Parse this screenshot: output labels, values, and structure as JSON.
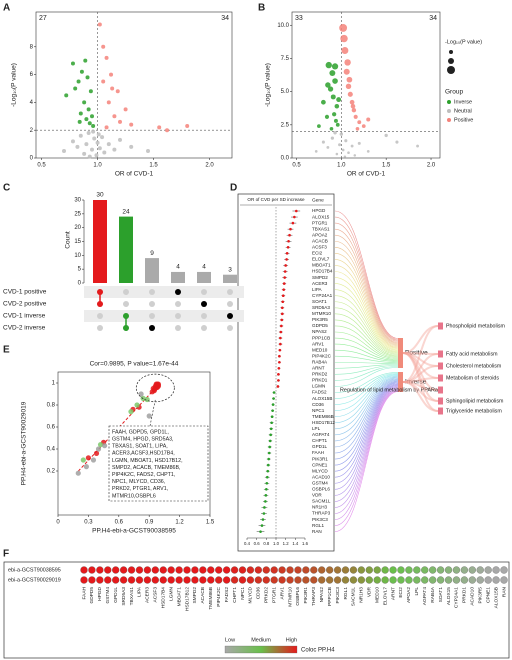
{
  "chart_data": [
    {
      "panel_label": "A",
      "type": "volcano",
      "x_label": "OR of CVD-1",
      "y_label": "-Log₁₀(P value)",
      "left_count": 27,
      "right_count": 34,
      "xlim": [
        0.45,
        2.2
      ],
      "xticks": [
        0.5,
        {
          "value": 1,
          "label": "1.0"
        },
        1.5,
        {
          "value": 2,
          "label": "2.0"
        }
      ],
      "ylim": [
        0,
        10.5
      ],
      "yticks": [
        0,
        2,
        4,
        6,
        8
      ],
      "vline": 1,
      "hline": 2,
      "series": [
        {
          "color": "#bdbdbd",
          "x": [
            0.7,
            0.78,
            0.82,
            0.85,
            0.88,
            0.9,
            0.92,
            0.95,
            0.97,
            0.99,
            1.0,
            1.02,
            1.04,
            1.06,
            1.1,
            1.15,
            1.2,
            1.3,
            1.45,
            0.93,
            0.96,
            1.01
          ],
          "values": [
            0.5,
            1.2,
            0.8,
            1.6,
            0.3,
            1.0,
            1.8,
            0.6,
            1.4,
            0.2,
            1.1,
            0.7,
            1.5,
            0.4,
            1.0,
            0.6,
            1.3,
            0.8,
            0.5,
            0.1,
            1.9,
            1.7
          ]
        },
        {
          "color": "#2ca02c",
          "x": [
            0.72,
            0.78,
            0.8,
            0.83,
            0.85,
            0.86,
            0.88,
            0.9,
            0.91,
            0.92,
            0.93,
            0.94,
            0.95,
            0.96,
            0.84,
            0.89
          ],
          "values": [
            4.5,
            6.8,
            5.0,
            5.5,
            3.2,
            6.2,
            4.0,
            2.8,
            5.8,
            3.5,
            2.5,
            4.8,
            3.0,
            2.3,
            2.6,
            7.0
          ]
        },
        {
          "color": "#f4827a",
          "x": [
            1.02,
            1.05,
            1.08,
            1.1,
            1.12,
            1.15,
            1.18,
            1.2,
            1.25,
            1.3,
            1.05,
            1.08,
            1.55,
            1.62,
            1.8,
            1.13
          ],
          "values": [
            9.6,
            5.5,
            7.2,
            4.0,
            6.0,
            3.0,
            4.8,
            2.6,
            3.5,
            2.4,
            8.0,
            2.2,
            2.2,
            2.0,
            2.3,
            5.0
          ]
        }
      ]
    },
    {
      "panel_label": "B",
      "type": "volcano",
      "x_label": "OR of CVD-1",
      "y_label": "-Log₁₀(P value)",
      "left_count": 33,
      "right_count": 34,
      "xlim": [
        0.45,
        2.1
      ],
      "xticks": [
        0.5,
        {
          "value": 1,
          "label": "1.0"
        },
        1.5,
        {
          "value": 2,
          "label": "2.0"
        }
      ],
      "ylim": [
        0,
        11
      ],
      "yticks": [
        {
          "value": 0,
          "label": "0.0"
        },
        2.5,
        {
          "value": 5,
          "label": "5.0"
        },
        7.5,
        {
          "value": 10,
          "label": "10.0"
        }
      ],
      "vline": 1,
      "hline": 2,
      "size_legend_title": "-Log₁₀(P value)",
      "legend_title": "Group",
      "series": [
        {
          "name": "Inverse",
          "color": "#2ca02c",
          "x": [
            0.75,
            0.8,
            0.84,
            0.86,
            0.88,
            0.9,
            0.91,
            0.92,
            0.93,
            0.94,
            0.95,
            0.96,
            0.97,
            0.89,
            0.85,
            0.93
          ],
          "values": [
            2.4,
            4.2,
            3.1,
            7.0,
            5.2,
            6.4,
            4.6,
            3.3,
            5.8,
            2.8,
            3.9,
            2.5,
            4.4,
            2.2,
            5.5,
            6.9
          ]
        },
        {
          "name": "Neutral",
          "color": "#bdbdbd",
          "x": [
            0.72,
            0.8,
            0.85,
            0.9,
            0.95,
            0.98,
            1.0,
            1.02,
            1.05,
            1.08,
            1.12,
            1.2,
            1.3,
            1.5,
            1.62,
            1.85,
            0.93,
            1.15,
            1.04
          ],
          "values": [
            0.5,
            1.2,
            0.8,
            1.5,
            0.3,
            1.0,
            1.8,
            0.6,
            1.3,
            0.4,
            0.9,
            1.1,
            0.5,
            1.7,
            1.2,
            0.9,
            1.9,
            0.2,
            0.1
          ]
        },
        {
          "name": "Positive",
          "color": "#f4827a",
          "x": [
            1.02,
            1.04,
            1.06,
            1.08,
            1.1,
            1.12,
            1.14,
            1.16,
            1.2,
            1.25,
            1.03,
            1.07,
            1.09,
            1.13,
            1.18,
            1.3
          ],
          "values": [
            9.8,
            8.1,
            6.5,
            5.4,
            4.8,
            4.2,
            3.6,
            3.1,
            2.7,
            2.4,
            9.0,
            7.2,
            5.9,
            3.9,
            2.2,
            2.9
          ]
        }
      ]
    },
    {
      "panel_label": "C",
      "type": "upset",
      "y_label": "Count",
      "ylim": [
        0,
        30
      ],
      "yticks": [
        0,
        5,
        10,
        15,
        20,
        25,
        30
      ],
      "sets": [
        "CVD-1 positive",
        "CVD-2 positive",
        "CVD-1 inverse",
        "CVD-2 inverse"
      ],
      "values": [
        30,
        24,
        9,
        4,
        4,
        3
      ],
      "members": [
        [
          0,
          1
        ],
        [
          2,
          3
        ],
        [
          3
        ],
        [
          0
        ],
        [
          1
        ],
        [
          2
        ]
      ],
      "colors": [
        "#e41a1c",
        "#2ca02c",
        "#aaaaaa",
        "#aaaaaa",
        "#aaaaaa",
        "#aaaaaa"
      ],
      "dot_colors": [
        "#e41a1c",
        "#2ca02c",
        "#000000",
        "#000000",
        "#000000",
        "#000000"
      ]
    },
    {
      "panel_label": "D",
      "type": "forest",
      "x_label": "OR of CVD per SD increase",
      "gene_header": "Gene",
      "categories": [
        "HPGD",
        "ALOX15",
        "PTGR1",
        "TBXAS1",
        "APOA2",
        "ACACB",
        "ACSF3",
        "ECI2",
        "ELOVL7",
        "MBOAT1",
        "HSD17B4",
        "SMPD2",
        "ACER3",
        "LIPA",
        "CYP24A1",
        "SOAT1",
        "SRD5A3",
        "MTMR10",
        "PIK3R5",
        "GDPD5",
        "NPAS2",
        "PPP1CB",
        "ARV1",
        "MED10",
        "PIP4K2C",
        "RAB4A",
        "ARNT",
        "PRKD2",
        "PRKD1",
        "LGMN",
        "FADS2",
        "ALOX15B",
        "CD36",
        "NPC1",
        "TMEM86B",
        "HSD17B12",
        "LPL",
        "AGPAT4",
        "CHPT1",
        "GPD1L",
        "FAAH",
        "PIK3R1",
        "CPNE1",
        "MLYCD",
        "ACAD10",
        "GSTM4",
        "OSBPL6",
        "VDR",
        "SACM1L",
        "NR1H3",
        "THRAP3",
        "PIK3C3",
        "RGL1",
        "RAN"
      ],
      "values": [
        1.42,
        1.38,
        1.35,
        1.3,
        1.28,
        1.26,
        1.25,
        1.23,
        1.22,
        1.2,
        1.19,
        1.18,
        1.17,
        1.16,
        1.15,
        1.14,
        1.13,
        1.13,
        1.12,
        1.11,
        1.1,
        1.09,
        1.09,
        1.08,
        1.07,
        1.07,
        1.06,
        1.05,
        1.05,
        1.04,
        0.96,
        0.95,
        0.94,
        0.93,
        0.92,
        0.91,
        0.9,
        0.89,
        0.88,
        0.87,
        0.86,
        0.85,
        0.84,
        0.83,
        0.82,
        0.81,
        0.8,
        0.79,
        0.78,
        0.76,
        0.75,
        0.73,
        0.71,
        0.68
      ],
      "errors": [
        0.08,
        0.07,
        0.07,
        0.06,
        0.06,
        0.06,
        0.05,
        0.05,
        0.05,
        0.05,
        0.05,
        0.05,
        0.04,
        0.04,
        0.04,
        0.04,
        0.04,
        0.04,
        0.04,
        0.04,
        0.04,
        0.04,
        0.04,
        0.03,
        0.03,
        0.03,
        0.03,
        0.03,
        0.03,
        0.03,
        0.03,
        0.03,
        0.03,
        0.03,
        0.03,
        0.04,
        0.04,
        0.04,
        0.04,
        0.04,
        0.04,
        0.04,
        0.04,
        0.04,
        0.05,
        0.05,
        0.05,
        0.05,
        0.05,
        0.06,
        0.06,
        0.06,
        0.07,
        0.08
      ],
      "xlim": [
        0.4,
        1.6
      ],
      "xticks": [
        0.4,
        0.6,
        0.8,
        {
          "value": 1,
          "label": "1.0"
        },
        1.2,
        1.4,
        1.6
      ],
      "ref_line": 1,
      "colors": [
        "#e41a1c",
        "#2ca02c"
      ],
      "groups": [
        "Positive",
        "Inverse"
      ],
      "pathways": [
        "Phospholipid metabolism",
        "Fatty acid metabolism",
        "Cholesterol metabolism",
        "Metabolism of steroids",
        "Regulation of lipid metabolism by PPARa",
        "Sphingolipid metabolism",
        "Triglyceride metabolism"
      ]
    },
    {
      "panel_label": "E",
      "type": "scatter",
      "title": "Cor=0.9895, P value=1.67e-44",
      "x_label": "PP.H4-ebi-a-GCST90038595",
      "y_label": "PP.H4-ebi-a-GCST90029019",
      "xlim": [
        0,
        1.5
      ],
      "xticks": [
        0,
        0.3,
        0.6,
        0.9,
        1.2,
        1.5
      ],
      "ylim": [
        -0.2,
        1.1
      ],
      "yticks": [
        0.2,
        0.4,
        0.6,
        0.8,
        1
      ],
      "series": [
        {
          "color": "#e41a1c",
          "x": [
            0.93,
            0.95,
            0.96,
            0.97,
            0.98,
            0.99,
            0.99,
            0.98,
            0.97,
            0.96,
            0.94,
            0.98,
            0.99,
            0.95,
            0.97
          ],
          "values": [
            0.92,
            0.94,
            0.95,
            0.96,
            0.97,
            0.98,
            0.99,
            0.99,
            0.98,
            0.97,
            0.95,
            0.96,
            0.97,
            0.93,
            0.99
          ]
        },
        {
          "color": "#e41a1c",
          "x": [
            0.3,
            0.38,
            0.45,
            0.74,
            0.8
          ],
          "values": [
            0.32,
            0.36,
            0.46,
            0.76,
            0.78
          ]
        },
        {
          "color": "#7cc96a",
          "x": [
            0.25,
            0.42,
            0.72,
            0.78,
            0.84,
            0.88
          ],
          "values": [
            0.3,
            0.44,
            0.74,
            0.8,
            0.86,
            0.85
          ]
        },
        {
          "color": "#a0a0a0",
          "x": [
            0.2,
            0.28,
            0.35,
            0.4,
            0.46,
            0.82,
            0.9
          ],
          "values": [
            0.18,
            0.24,
            0.3,
            0.4,
            0.43,
            0.9,
            0.7
          ]
        }
      ],
      "annotation": [
        "FAAH, GDPD5, GPD1L,",
        "GSTM4, HPGD, SRD5A3,",
        "TBXAS1, SOAT1, LIPA,",
        "ACER3,ACSF3,HSD17B4,",
        "LGMN, MBOAT1, HSD17B12,",
        "SMPD2, ACACB, TMEM86B,",
        "PIP4K2C, FADS2, CHPT1,",
        "NPC1, MLYCD, CD36,",
        "PRKD2, PTGR1, ARV1,",
        "MTMR10,OSBPL6"
      ]
    },
    {
      "panel_label": "F",
      "type": "dot_heatmap",
      "rows": [
        "ebi-a-GCST90038595",
        "ebi-a-GCST90029019"
      ],
      "categories": [
        "FAAH",
        "GDPD5",
        "HPGD",
        "GSTM4",
        "GPD1L",
        "SRD5A3",
        "TBXAS1",
        "LIPA",
        "ACER3",
        "ACSF3",
        "HSD17B4",
        "LGMN",
        "MBOAT1",
        "HSD17B12",
        "SMPD2",
        "ACACB",
        "TMEM86B",
        "PIP4K2C",
        "FADS2",
        "CHPT1",
        "NPC1",
        "MLYCD",
        "CD36",
        "PRKD2",
        "PTGR1",
        "ARV1",
        "MTMR10",
        "OSBPL6",
        "PIK3R1",
        "THRAP3",
        "NPAS2",
        "PPP1CB",
        "PIK3C3",
        "RGL1",
        "SACM1L",
        "NR1H3",
        "VDR",
        "MED10",
        "ELOVL7",
        "ARNT",
        "ECI2",
        "APOA2",
        "LPL",
        "AGPAT4",
        "RAB4A",
        "SOAT1",
        "ALOX15",
        "CYP24A1",
        "PRKD1",
        "ACAD10",
        "PIK3R5",
        "CPNE1",
        "ALOX15B",
        "RAN"
      ],
      "values": [
        [
          0.99,
          0.99,
          0.99,
          0.99,
          0.99,
          0.98,
          0.98,
          0.98,
          0.98,
          0.97,
          0.97,
          0.97,
          0.97,
          0.96,
          0.96,
          0.96,
          0.95,
          0.95,
          0.95,
          0.94,
          0.94,
          0.93,
          0.93,
          0.92,
          0.92,
          0.91,
          0.9,
          0.9,
          0.89,
          0.88,
          0.86,
          0.85,
          0.84,
          0.83,
          0.82,
          0.8,
          0.79,
          0.78,
          0.76,
          0.75,
          0.74,
          0.72,
          0.71,
          0.7,
          0.68,
          0.66,
          0.65,
          0.63,
          0.61,
          0.6,
          0.58,
          0.56,
          0.54,
          0.52
        ],
        [
          0.99,
          0.99,
          0.99,
          0.98,
          0.99,
          0.98,
          0.98,
          0.97,
          0.98,
          0.97,
          0.96,
          0.97,
          0.96,
          0.96,
          0.95,
          0.96,
          0.95,
          0.94,
          0.95,
          0.93,
          0.94,
          0.93,
          0.92,
          0.92,
          0.91,
          0.91,
          0.9,
          0.89,
          0.88,
          0.88,
          0.85,
          0.84,
          0.84,
          0.82,
          0.81,
          0.8,
          0.78,
          0.77,
          0.76,
          0.74,
          0.73,
          0.72,
          0.7,
          0.69,
          0.67,
          0.66,
          0.64,
          0.62,
          0.61,
          0.59,
          0.57,
          0.55,
          0.53,
          0.51
        ]
      ],
      "color_scale": [
        "#a8a8a8",
        "#6abf4b",
        "#e41a1c"
      ],
      "color_domain": [
        0.55,
        0.75,
        0.95
      ],
      "legend_labels": [
        "Low",
        "Medium",
        "High"
      ],
      "legend_title": "Coloc PP.H4"
    }
  ]
}
